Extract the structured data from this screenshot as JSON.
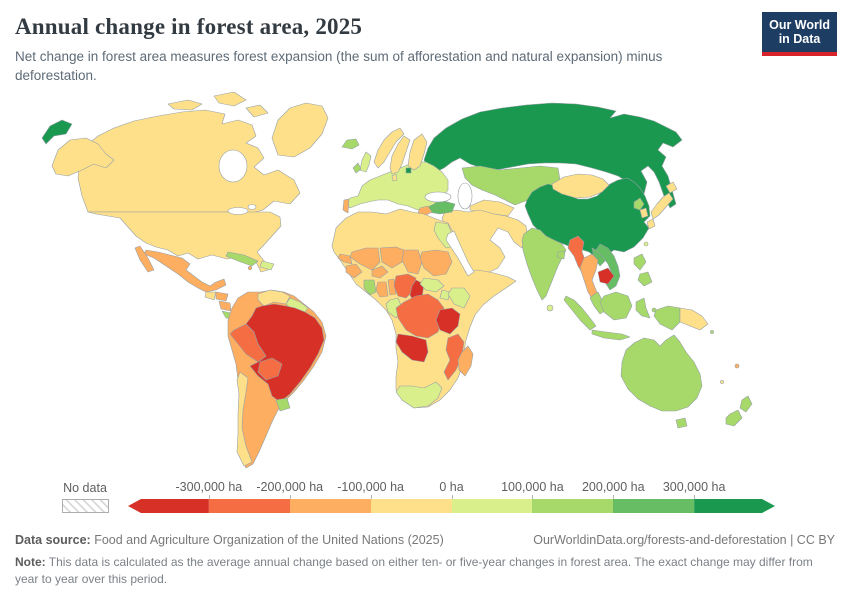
{
  "header": {
    "title": "Annual change in forest area, 2025",
    "subtitle": "Net change in forest area measures forest expansion (the sum of afforestation and natural expansion) minus deforestation.",
    "logo": {
      "line1": "Our World",
      "line2": "in Data",
      "bg_color": "#1d3d63",
      "accent_color": "#d8232a"
    }
  },
  "legend": {
    "no_data_label": "No data",
    "tick_labels": [
      "-300,000 ha",
      "-200,000 ha",
      "-100,000 ha",
      "0 ha",
      "100,000 ha",
      "200,000 ha",
      "300,000 ha"
    ],
    "band_order": [
      "red",
      "orange_red",
      "orange",
      "yellow",
      "yellow_green",
      "light_green",
      "mid_green",
      "dark_green"
    ]
  },
  "footer": {
    "datasource_label": "Data source:",
    "datasource": "Food and Agriculture Organization of the United Nations (2025)",
    "credit": "OurWorldinData.org/forests-and-deforestation | CC BY",
    "note_label": "Note:",
    "note": "This data is calculated as the average annual change based on either ten- or five-year changes in forest area. The exact change may differ from year to year over this period."
  },
  "chart_data": {
    "type": "choropleth",
    "title": "Annual change in forest area, 2025",
    "unit": "ha",
    "legend_position": "bottom",
    "color_scale": {
      "palette": {
        "red": "#d73027",
        "orange_red": "#f46d43",
        "orange": "#fdae61",
        "yellow": "#fee08b",
        "yellow_green": "#d9ef8b",
        "light_green": "#a6d96a",
        "mid_green": "#66bd63",
        "dark_green": "#1a9850",
        "water": "#ffffff",
        "border": "#97a0a6"
      },
      "bins": [
        {
          "band": "red",
          "range": "less than -300,000 ha"
        },
        {
          "band": "orange_red",
          "range": "-300,000 to -200,000 ha"
        },
        {
          "band": "orange",
          "range": "-200,000 to -100,000 ha"
        },
        {
          "band": "yellow",
          "range": "-100,000 to 0 ha"
        },
        {
          "band": "yellow_green",
          "range": "0 to 100,000 ha"
        },
        {
          "band": "light_green",
          "range": "100,000 to 200,000 ha"
        },
        {
          "band": "mid_green",
          "range": "200,000 to 300,000 ha"
        },
        {
          "band": "dark_green",
          "range": "more than 300,000 ha"
        }
      ]
    },
    "country_bands": {
      "russia": "dark_green",
      "china": "dark_green",
      "lithuania": "dark_green",
      "turkey": "mid_green",
      "vietnam": "mid_green",
      "laos": "mid_green",
      "kazakhstan": "light_green",
      "india": "light_green",
      "australia": "light_green",
      "new_zealand": "light_green",
      "indonesia": "light_green",
      "malaysia": "light_green",
      "philippines": "light_green",
      "cuba": "light_green",
      "uruguay": "light_green",
      "ivory_coast": "light_green",
      "costa_rica": "light_green",
      "panama": "light_green",
      "north_korea": "light_green",
      "ireland": "light_green",
      "iceland": "light_green",
      "bangladesh": "light_green",
      "solomon_islands": "light_green",
      "europe": "yellow_green",
      "united_kingdom": "yellow_green",
      "france": "yellow_green",
      "spain": "yellow_green",
      "germany": "yellow_green",
      "poland": "yellow_green",
      "italy": "yellow_green",
      "ukraine": "yellow_green",
      "romania": "yellow_green",
      "egypt": "yellow_green",
      "kenya": "yellow_green",
      "uganda": "yellow_green",
      "central_african_republic": "yellow_green",
      "gabon": "yellow_green",
      "south_africa": "yellow_green",
      "dominican_republic": "yellow_green",
      "guyana": "yellow_green",
      "sri_lanka": "yellow_green",
      "taiwan": "yellow_green",
      "africa": "yellow",
      "middle_east": "yellow",
      "central_asia": "yellow",
      "canada": "yellow",
      "united_states": "yellow",
      "greenland": "yellow",
      "norway": "yellow",
      "sweden": "yellow",
      "finland": "yellow",
      "denmark": "yellow",
      "japan": "yellow",
      "south_korea": "yellow",
      "mongolia": "yellow",
      "saudi_arabia": "yellow",
      "iran": "yellow",
      "iraq": "yellow",
      "afghanistan": "yellow",
      "pakistan": "yellow",
      "morocco": "yellow",
      "algeria": "yellow",
      "libya": "yellow",
      "mauritania": "yellow",
      "ethiopia": "yellow",
      "somalia": "yellow",
      "zambia": "yellow",
      "zimbabwe": "yellow",
      "namibia": "yellow",
      "botswana": "yellow",
      "sierra_leone": "yellow",
      "liberia": "yellow",
      "venezuela": "yellow",
      "chile": "yellow",
      "papua_new_guinea": "yellow",
      "guatemala": "yellow",
      "new_caledonia": "yellow",
      "south_america": "orange",
      "mexico": "orange",
      "colombia": "orange",
      "ecuador": "orange",
      "argentina": "orange",
      "paraguay": "orange",
      "mali": "orange",
      "burkina_faso": "orange",
      "niger": "orange",
      "chad": "orange",
      "sudan": "orange",
      "senegal": "orange",
      "guinea": "orange",
      "ghana": "orange",
      "benin": "orange",
      "madagascar": "orange",
      "thailand": "orange",
      "honduras": "orange",
      "nicaragua": "orange",
      "greece": "orange",
      "portugal": "orange",
      "fiji": "orange",
      "jamaica": "orange",
      "peru": "orange_red",
      "bolivia": "orange_red",
      "dr_congo": "orange_red",
      "mozambique": "orange_red",
      "myanmar": "orange_red",
      "nigeria": "orange_red",
      "brazil": "red",
      "angola": "red",
      "tanzania": "red",
      "cambodia": "red",
      "cameroon": "red"
    }
  }
}
